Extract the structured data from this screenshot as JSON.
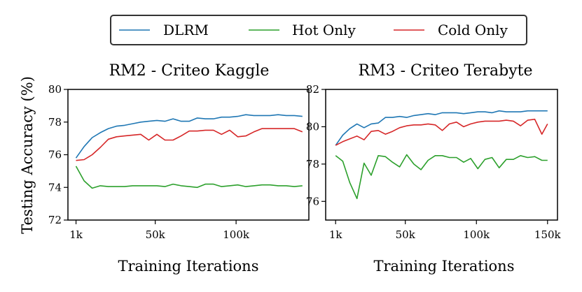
{
  "colors": {
    "dlrm": "#1f77b4",
    "hot": "#2ca02c",
    "cold": "#d62728"
  },
  "legend": {
    "location": "top-center",
    "items": [
      {
        "label": "DLRM",
        "series": "dlrm"
      },
      {
        "label": "Hot Only",
        "series": "hot"
      },
      {
        "label": "Cold Only",
        "series": "cold"
      }
    ]
  },
  "ylabel": "Testing Accuracy (%)",
  "chart_data": [
    {
      "type": "line",
      "title": "RM2 - Criteo Kaggle",
      "xlabel": "Training Iterations",
      "ylabel": "Testing Accuracy (%)",
      "xlim": [
        -4,
        145
      ],
      "ylim": [
        72,
        80
      ],
      "xticks": [
        1,
        50,
        100
      ],
      "xtick_labels": [
        "1k",
        "50k",
        "100k"
      ],
      "yticks": [
        72,
        74,
        76,
        78,
        80
      ],
      "ytick_labels": [
        "72",
        "74",
        "76",
        "78",
        "80"
      ],
      "x": [
        1,
        6,
        11,
        16,
        21,
        26,
        31,
        36,
        41,
        46,
        51,
        56,
        61,
        66,
        71,
        76,
        81,
        86,
        91,
        96,
        101,
        106,
        111,
        116,
        121,
        126,
        131,
        136,
        141
      ],
      "series": [
        {
          "name": "DLRM",
          "key": "dlrm",
          "values": [
            75.8,
            76.5,
            77.05,
            77.35,
            77.6,
            77.75,
            77.8,
            77.9,
            78.0,
            78.05,
            78.1,
            78.05,
            78.2,
            78.05,
            78.05,
            78.25,
            78.2,
            78.2,
            78.3,
            78.3,
            78.35,
            78.45,
            78.4,
            78.4,
            78.4,
            78.45,
            78.4,
            78.4,
            78.35
          ]
        },
        {
          "name": "Hot Only",
          "key": "hot",
          "values": [
            75.3,
            74.4,
            73.95,
            74.1,
            74.05,
            74.05,
            74.05,
            74.1,
            74.1,
            74.1,
            74.1,
            74.05,
            74.2,
            74.1,
            74.05,
            74.0,
            74.2,
            74.2,
            74.05,
            74.1,
            74.15,
            74.05,
            74.1,
            74.15,
            74.15,
            74.1,
            74.1,
            74.05,
            74.1
          ]
        },
        {
          "name": "Cold Only",
          "key": "cold",
          "values": [
            75.65,
            75.7,
            76.0,
            76.45,
            76.95,
            77.1,
            77.15,
            77.2,
            77.25,
            76.9,
            77.25,
            76.9,
            76.9,
            77.15,
            77.45,
            77.45,
            77.5,
            77.5,
            77.25,
            77.5,
            77.1,
            77.15,
            77.4,
            77.6,
            77.6,
            77.6,
            77.6,
            77.6,
            77.4
          ]
        }
      ]
    },
    {
      "type": "line",
      "title": "RM3 - Criteo Terabyte",
      "xlabel": "Training Iterations",
      "ylabel": "",
      "xlim": [
        -6,
        157
      ],
      "ylim": [
        75,
        82
      ],
      "xticks": [
        1,
        50,
        100,
        150
      ],
      "xtick_labels": [
        "1k",
        "50k",
        "100k",
        "150k"
      ],
      "yticks": [
        76,
        78,
        80,
        82
      ],
      "ytick_labels": [
        "76",
        "78",
        "80",
        "82"
      ],
      "x": [
        1,
        6,
        11,
        16,
        21,
        26,
        31,
        36,
        41,
        46,
        51,
        56,
        61,
        66,
        71,
        76,
        81,
        86,
        91,
        96,
        101,
        106,
        111,
        116,
        121,
        126,
        131,
        136,
        141,
        146,
        150
      ],
      "series": [
        {
          "name": "DLRM",
          "key": "dlrm",
          "values": [
            79.0,
            79.55,
            79.9,
            80.15,
            79.95,
            80.15,
            80.2,
            80.5,
            80.5,
            80.55,
            80.5,
            80.6,
            80.65,
            80.7,
            80.65,
            80.75,
            80.75,
            80.75,
            80.7,
            80.75,
            80.8,
            80.8,
            80.75,
            80.85,
            80.8,
            80.8,
            80.8,
            80.85,
            80.85,
            80.85,
            80.85
          ]
        },
        {
          "name": "Hot Only",
          "key": "hot",
          "values": [
            78.45,
            78.15,
            77.0,
            76.15,
            78.05,
            77.4,
            78.45,
            78.4,
            78.1,
            77.85,
            78.5,
            78.0,
            77.7,
            78.2,
            78.45,
            78.45,
            78.35,
            78.35,
            78.1,
            78.3,
            77.75,
            78.25,
            78.35,
            77.8,
            78.25,
            78.25,
            78.45,
            78.35,
            78.4,
            78.2,
            78.2
          ]
        },
        {
          "name": "Cold Only",
          "key": "cold",
          "values": [
            79.0,
            79.2,
            79.35,
            79.5,
            79.3,
            79.75,
            79.8,
            79.6,
            79.75,
            79.95,
            80.05,
            80.1,
            80.1,
            80.15,
            80.1,
            79.8,
            80.15,
            80.25,
            80.0,
            80.15,
            80.25,
            80.3,
            80.3,
            80.3,
            80.35,
            80.3,
            80.05,
            80.35,
            80.4,
            79.6,
            80.15
          ]
        }
      ]
    }
  ]
}
